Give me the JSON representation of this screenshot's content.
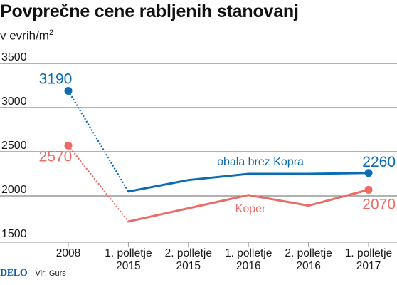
{
  "title": "Povprečne cene rabljenih stanovanj",
  "subtitle": {
    "text": "v evrih/m",
    "sup": "2"
  },
  "footer": {
    "brand": "DELO",
    "source": "Vir: Gurs"
  },
  "colors": {
    "blue": "#0b6cb5",
    "red": "#ec6b66",
    "grid": "#333333",
    "baseline": "#9a9a9a"
  },
  "chart_data": {
    "type": "line",
    "categories": [
      [
        "2008"
      ],
      [
        "1. polletje",
        "2015"
      ],
      [
        "2. polletje",
        "2015"
      ],
      [
        "1. polletje",
        "2016"
      ],
      [
        "2. polletje",
        "2016"
      ],
      [
        "1. polletje",
        "2017"
      ]
    ],
    "series": [
      {
        "name": "obala brez Kopra",
        "color": "#0b6cb5",
        "values": [
          3190,
          2050,
          2180,
          2250,
          2250,
          2260
        ]
      },
      {
        "name": "Koper",
        "color": "#ec6b66",
        "values": [
          2570,
          1710,
          1860,
          2010,
          1890,
          2070
        ]
      }
    ],
    "labeled_values": [
      {
        "series": 0,
        "index": 0,
        "text": "3190"
      },
      {
        "series": 0,
        "index": 5,
        "text": "2260"
      },
      {
        "series": 1,
        "index": 0,
        "text": "2570"
      },
      {
        "series": 1,
        "index": 5,
        "text": "2070"
      }
    ],
    "dotted_segment": [
      0,
      1
    ],
    "y_ticks": [
      1500,
      2000,
      2500,
      3000,
      3500
    ],
    "ylim": [
      1500,
      3500
    ],
    "grid": true
  }
}
